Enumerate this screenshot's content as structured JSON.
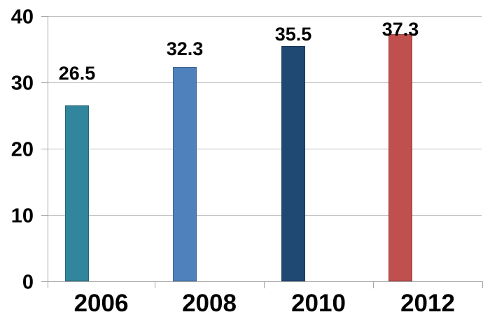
{
  "chart_data": {
    "type": "bar",
    "categories": [
      "2006",
      "2008",
      "2010",
      "2012"
    ],
    "values": [
      26.5,
      32.3,
      35.5,
      37.3
    ],
    "value_labels": [
      "26.5",
      "32.3",
      "35.5",
      "37.3"
    ],
    "bar_colors": [
      "#31859C",
      "#4F81BD",
      "#1F4872",
      "#C0504D"
    ],
    "title": "",
    "xlabel": "",
    "ylabel": "",
    "ylim": [
      0,
      40
    ],
    "yticks": [
      0,
      10,
      20,
      30,
      40
    ],
    "ytick_labels": [
      "0",
      "10",
      "20",
      "30",
      "40"
    ],
    "grid": true,
    "legend": false,
    "data_labels": true,
    "gridline_color": "#BFBFBF",
    "axis_color": "#A6A6A6",
    "text_color": "#000000",
    "background_color": "#FFFFFF"
  }
}
